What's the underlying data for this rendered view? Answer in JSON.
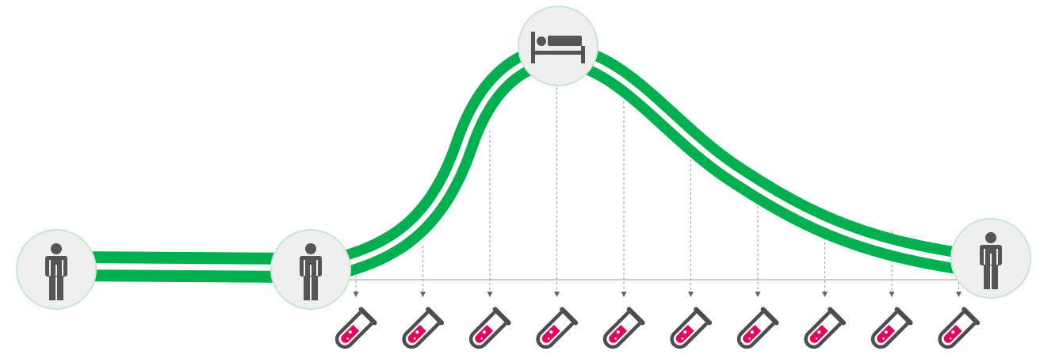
{
  "diagram": {
    "stages": [
      {
        "id": "healthy-start",
        "icon": "person-standing-icon"
      },
      {
        "id": "infection-onset",
        "icon": "person-standing-icon"
      },
      {
        "id": "peak-illness",
        "icon": "bed-icon"
      },
      {
        "id": "recovered",
        "icon": "person-standing-icon"
      }
    ],
    "sample_count": 10,
    "sample_icon": "test-tube-icon",
    "colors": {
      "curve": "#00b050",
      "node_fill": "#efefef",
      "node_border": "#c9e6cf",
      "icon": "#555555",
      "tube_outline": "#4d4d4d",
      "tube_liquid": "#e5005f",
      "guide_line": "#999999"
    }
  }
}
